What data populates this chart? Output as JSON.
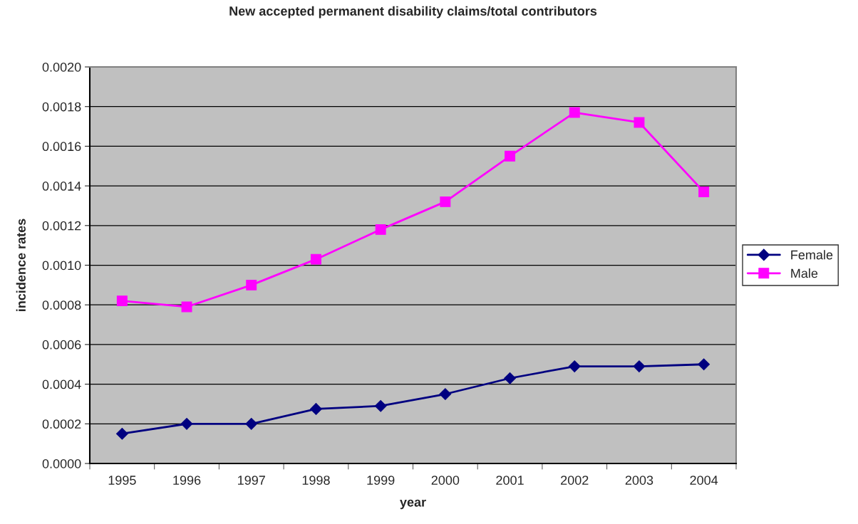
{
  "chart_data": {
    "type": "line",
    "title": "New accepted permanent disability claims/total contributors",
    "xlabel": "year",
    "ylabel": "incidence rates",
    "categories": [
      "1995",
      "1996",
      "1997",
      "1998",
      "1999",
      "2000",
      "2001",
      "2002",
      "2003",
      "2004"
    ],
    "series": [
      {
        "name": "Female",
        "color": "#000080",
        "marker": "diamond",
        "values": [
          0.00015,
          0.0002,
          0.0002,
          0.000275,
          0.00029,
          0.00035,
          0.00043,
          0.00049,
          0.00049,
          0.0005
        ]
      },
      {
        "name": "Male",
        "color": "#ff00ff",
        "marker": "square",
        "values": [
          0.00082,
          0.00079,
          0.0009,
          0.00103,
          0.00118,
          0.00132,
          0.00155,
          0.00177,
          0.00172,
          0.00137
        ]
      }
    ],
    "ylim": [
      0,
      0.002
    ],
    "yticks": [
      {
        "value": 0,
        "label": "0.0000"
      },
      {
        "value": 0.0002,
        "label": "0.0002"
      },
      {
        "value": 0.0004,
        "label": "0.0004"
      },
      {
        "value": 0.0006,
        "label": "0.0006"
      },
      {
        "value": 0.0008,
        "label": "0.0008"
      },
      {
        "value": 0.001,
        "label": "0.0010"
      },
      {
        "value": 0.0012,
        "label": "0.0012"
      },
      {
        "value": 0.0014,
        "label": "0.0014"
      },
      {
        "value": 0.0016,
        "label": "0.0016"
      },
      {
        "value": 0.0018,
        "label": "0.0018"
      },
      {
        "value": 0.002,
        "label": "0.0020"
      }
    ],
    "grid": "y",
    "legend": "right",
    "line_style": "solid"
  }
}
